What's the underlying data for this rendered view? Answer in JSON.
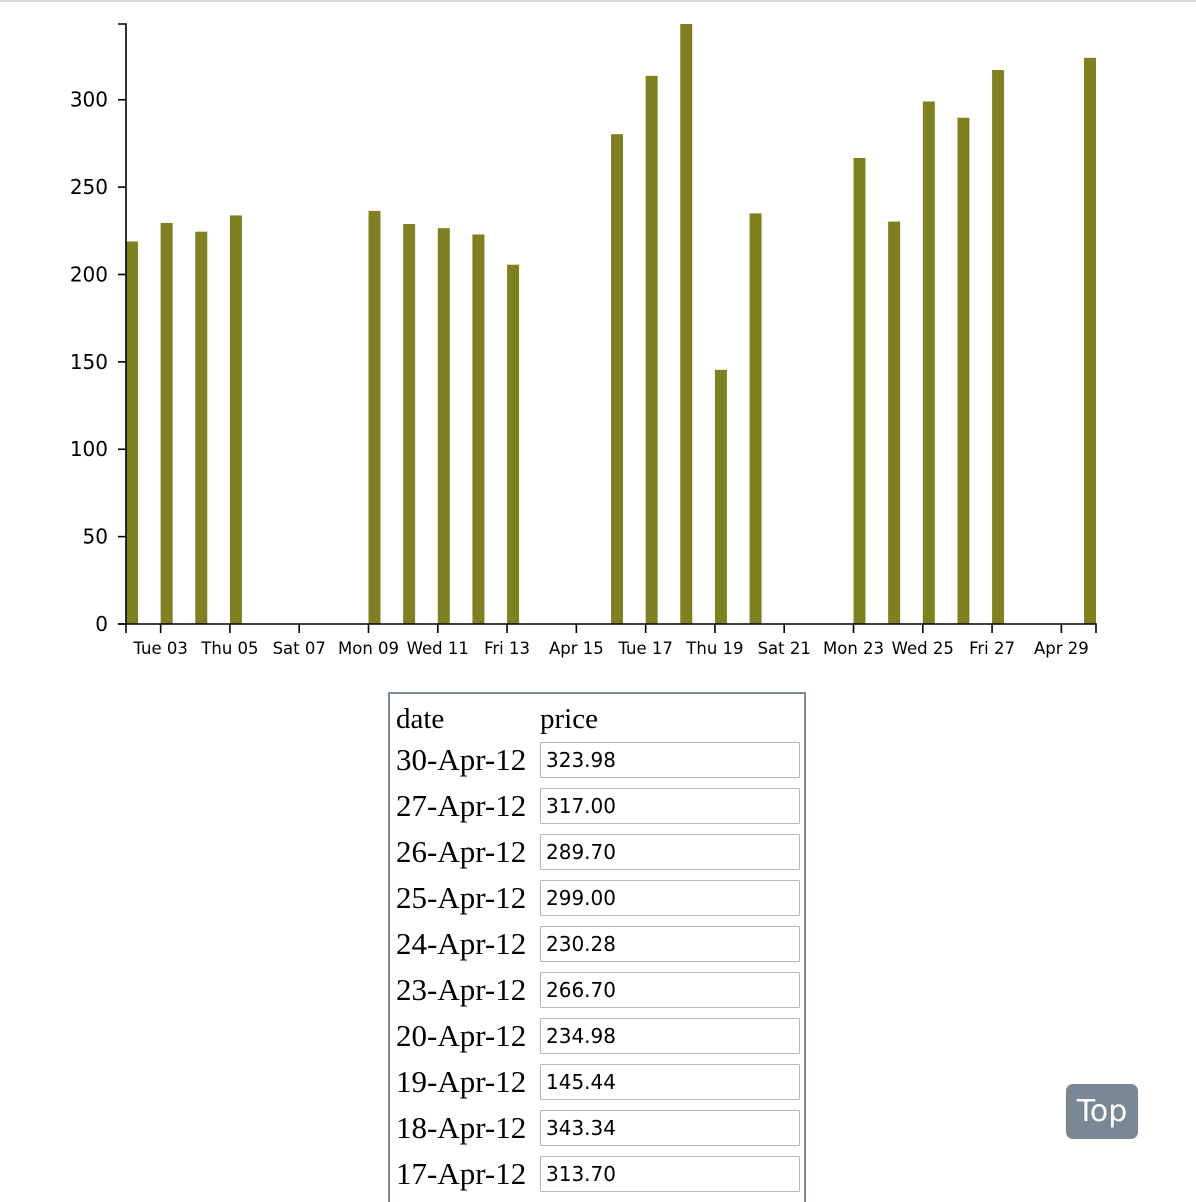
{
  "chart_data": {
    "type": "bar",
    "xlabel": "",
    "ylabel": "",
    "x_type": "time",
    "x_range": [
      "2012-04-02",
      "2012-04-30"
    ],
    "ylim": [
      0,
      343.34
    ],
    "y_ticks": [
      0,
      50,
      100,
      150,
      200,
      250,
      300
    ],
    "x_ticks": [
      {
        "date": "2012-04-03",
        "label": "Tue 03"
      },
      {
        "date": "2012-04-05",
        "label": "Thu 05"
      },
      {
        "date": "2012-04-07",
        "label": "Sat 07"
      },
      {
        "date": "2012-04-09",
        "label": "Mon 09"
      },
      {
        "date": "2012-04-11",
        "label": "Wed 11"
      },
      {
        "date": "2012-04-13",
        "label": "Fri 13"
      },
      {
        "date": "2012-04-15",
        "label": "Apr 15"
      },
      {
        "date": "2012-04-17",
        "label": "Tue 17"
      },
      {
        "date": "2012-04-19",
        "label": "Thu 19"
      },
      {
        "date": "2012-04-21",
        "label": "Sat 21"
      },
      {
        "date": "2012-04-23",
        "label": "Mon 23"
      },
      {
        "date": "2012-04-25",
        "label": "Wed 25"
      },
      {
        "date": "2012-04-27",
        "label": "Fri 27"
      },
      {
        "date": "2012-04-29",
        "label": "Apr 29"
      }
    ],
    "series": [
      {
        "color": "#808020",
        "points": [
          {
            "date": "2012-04-02",
            "value": 218.9
          },
          {
            "date": "2012-04-03",
            "value": 229.5
          },
          {
            "date": "2012-04-04",
            "value": 224.5
          },
          {
            "date": "2012-04-05",
            "value": 233.8
          },
          {
            "date": "2012-04-09",
            "value": 236.4
          },
          {
            "date": "2012-04-10",
            "value": 228.9
          },
          {
            "date": "2012-04-11",
            "value": 226.5
          },
          {
            "date": "2012-04-12",
            "value": 222.9
          },
          {
            "date": "2012-04-13",
            "value": 205.6
          },
          {
            "date": "2012-04-16",
            "value": 280.3
          },
          {
            "date": "2012-04-17",
            "value": 313.7
          },
          {
            "date": "2012-04-18",
            "value": 343.34
          },
          {
            "date": "2012-04-19",
            "value": 145.44
          },
          {
            "date": "2012-04-20",
            "value": 234.98
          },
          {
            "date": "2012-04-23",
            "value": 266.7
          },
          {
            "date": "2012-04-24",
            "value": 230.28
          },
          {
            "date": "2012-04-25",
            "value": 299.0
          },
          {
            "date": "2012-04-26",
            "value": 289.7
          },
          {
            "date": "2012-04-27",
            "value": 317.0
          },
          {
            "date": "2012-04-30",
            "value": 323.98
          }
        ]
      }
    ]
  },
  "table": {
    "headers": {
      "date": "date",
      "price": "price"
    },
    "rows": [
      {
        "date": "30-Apr-12",
        "price": "323.98"
      },
      {
        "date": "27-Apr-12",
        "price": "317.00"
      },
      {
        "date": "26-Apr-12",
        "price": "289.70"
      },
      {
        "date": "25-Apr-12",
        "price": "299.00"
      },
      {
        "date": "24-Apr-12",
        "price": "230.28"
      },
      {
        "date": "23-Apr-12",
        "price": "266.70"
      },
      {
        "date": "20-Apr-12",
        "price": "234.98"
      },
      {
        "date": "19-Apr-12",
        "price": "145.44"
      },
      {
        "date": "18-Apr-12",
        "price": "343.34"
      },
      {
        "date": "17-Apr-12",
        "price": "313.70"
      }
    ]
  },
  "top_button": {
    "label": "Top"
  }
}
